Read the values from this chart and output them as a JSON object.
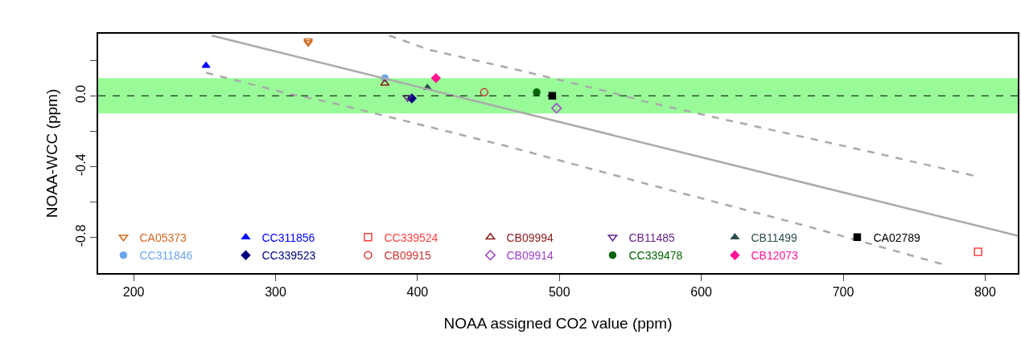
{
  "chart_data": {
    "type": "scatter",
    "xlabel": "NOAA assigned CO2 value (ppm)",
    "ylabel": "NOAA-WCC (ppm)",
    "xlim": [
      175,
      823
    ],
    "xticks": [
      200,
      300,
      400,
      500,
      600,
      700,
      800
    ],
    "ylim": [
      -1.0,
      0.35
    ],
    "yticks": [
      {
        "value": 0.2,
        "label": null
      },
      {
        "value": 0,
        "label": "0.0"
      },
      {
        "value": -0.2,
        "label": null
      },
      -0.4,
      {
        "value": -0.6,
        "label": null
      },
      -0.8
    ],
    "grid": false,
    "legend": "bottom left",
    "ref_lines": [
      {
        "axis": "y",
        "value": 0,
        "color": "#000000",
        "line_style": "dashed"
      }
    ],
    "bands": [
      {
        "axis": "y",
        "from": -0.1,
        "to": 0.1,
        "color": "#98fb98"
      }
    ],
    "series": [
      {
        "name": "CA05373",
        "color": "#d2691e",
        "marker": "triangle-down-open",
        "x": [
          323,
          323
        ],
        "values": [
          0.31,
          0.3
        ]
      },
      {
        "name": "CC311846",
        "color": "#6ca6ee",
        "marker": "circle",
        "x": [
          377
        ],
        "values": [
          0.1
        ]
      },
      {
        "name": "CC311856",
        "color": "#0000ff",
        "marker": "triangle",
        "x": [
          251
        ],
        "values": [
          0.17
        ]
      },
      {
        "name": "CC339523",
        "color": "#000080",
        "marker": "diamond",
        "x": [
          396
        ],
        "values": [
          -0.015
        ]
      },
      {
        "name": "CC339524",
        "color": "#ff4040",
        "marker": "square-open",
        "x": [
          795
        ],
        "values": [
          -0.88
        ]
      },
      {
        "name": "CB09915",
        "color": "#cd3333",
        "marker": "circle-open",
        "x": [
          447
        ],
        "values": [
          0.02
        ]
      },
      {
        "name": "CB09994",
        "color": "#8b1a1a",
        "marker": "triangle-open",
        "x": [
          377
        ],
        "values": [
          0.07
        ]
      },
      {
        "name": "CB09914",
        "color": "#a040d0",
        "marker": "diamond-open",
        "x": [
          498
        ],
        "values": [
          -0.07
        ]
      },
      {
        "name": "CB11485",
        "color": "#68228b",
        "marker": "triangle-down-open",
        "x": [
          393
        ],
        "values": [
          -0.01
        ]
      },
      {
        "name": "CC339478",
        "color": "#006400",
        "marker": "circle",
        "x": [
          484
        ],
        "values": [
          0.02
        ]
      },
      {
        "name": "CB11499",
        "color": "#2f4f4f",
        "marker": "triangle",
        "x": [
          407
        ],
        "values": [
          0.045
        ]
      },
      {
        "name": "CB12073",
        "color": "#ff1493",
        "marker": "diamond",
        "x": [
          413
        ],
        "values": [
          0.1
        ]
      },
      {
        "name": "CA02789",
        "color": "#000000",
        "marker": "square",
        "x": [
          495
        ],
        "values": [
          0.0
        ]
      },
      {
        "type": "line",
        "color": "#aaaaaa",
        "marker": "none",
        "line_style": "solid",
        "x": [
          255,
          823
        ],
        "values": [
          0.34,
          -0.79
        ]
      },
      {
        "type": "line",
        "color": "#aaaaaa",
        "marker": "none",
        "line_style": "dashed",
        "x": [
          380,
          408,
          479,
          536,
          559,
          603,
          710,
          792
        ],
        "values": [
          0.34,
          0.26,
          0.13,
          0.02,
          -0.03,
          -0.11,
          -0.3,
          -0.45
        ]
      },
      {
        "type": "line",
        "color": "#aaaaaa",
        "marker": "none",
        "line_style": "dashed",
        "x": [
          251,
          310,
          340,
          461,
          563,
          672,
          770
        ],
        "values": [
          0.13,
          0.01,
          -0.04,
          -0.28,
          -0.5,
          -0.73,
          -0.95
        ]
      }
    ]
  }
}
